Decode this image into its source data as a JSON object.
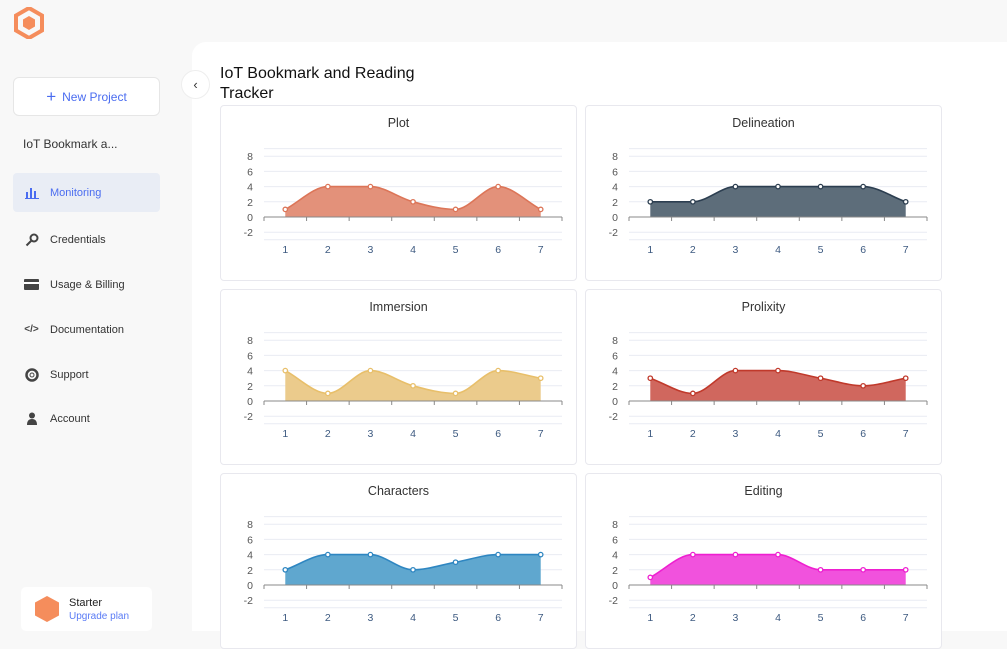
{
  "sidebar": {
    "new_project": "New Project",
    "project_name": "IoT Bookmark a...",
    "items": [
      {
        "label": "Monitoring",
        "icon": "bar-chart-icon",
        "active": true
      },
      {
        "label": "Credentials",
        "icon": "key-icon"
      },
      {
        "label": "Usage & Billing",
        "icon": "credit-card-icon"
      },
      {
        "label": "Documentation",
        "icon": "code-icon"
      },
      {
        "label": "Support",
        "icon": "lifebuoy-icon"
      },
      {
        "label": "Account",
        "icon": "user-icon"
      }
    ],
    "plan": {
      "name": "Starter",
      "upgrade": "Upgrade plan"
    }
  },
  "page": {
    "title": "IoT Bookmark and Reading Tracker"
  },
  "colors": {
    "accent": "#4a6cf0",
    "brand": "#f58d5c"
  },
  "chart_data": [
    {
      "type": "area",
      "title": "Plot",
      "categories": [
        "1",
        "2",
        "3",
        "4",
        "5",
        "6",
        "7"
      ],
      "values": [
        1,
        4,
        4,
        2,
        1,
        4,
        1
      ],
      "yticks": [
        -2,
        0,
        2,
        4,
        6,
        8
      ],
      "line": "#dc7558",
      "fill": "#e3917a"
    },
    {
      "type": "area",
      "title": "Delineation",
      "categories": [
        "1",
        "2",
        "3",
        "4",
        "5",
        "6",
        "7"
      ],
      "values": [
        2,
        2,
        4,
        4,
        4,
        4,
        2
      ],
      "yticks": [
        -2,
        0,
        2,
        4,
        6,
        8
      ],
      "line": "#2c3e50",
      "fill": "#5d6d7a"
    },
    {
      "type": "area",
      "title": "Immersion",
      "categories": [
        "1",
        "2",
        "3",
        "4",
        "5",
        "6",
        "7"
      ],
      "values": [
        4,
        1,
        4,
        2,
        1,
        4,
        3
      ],
      "yticks": [
        -2,
        0,
        2,
        4,
        6,
        8
      ],
      "line": "#e8bf6a",
      "fill": "#ebcb8c"
    },
    {
      "type": "area",
      "title": "Prolixity",
      "categories": [
        "1",
        "2",
        "3",
        "4",
        "5",
        "6",
        "7"
      ],
      "values": [
        3,
        1,
        4,
        4,
        3,
        2,
        3
      ],
      "yticks": [
        -2,
        0,
        2,
        4,
        6,
        8
      ],
      "line": "#c0392b",
      "fill": "#d0675e"
    },
    {
      "type": "area",
      "title": "Characters",
      "categories": [
        "1",
        "2",
        "3",
        "4",
        "5",
        "6",
        "7"
      ],
      "values": [
        2,
        4,
        4,
        2,
        3,
        4,
        4
      ],
      "yticks": [
        -2,
        0,
        2,
        4,
        6,
        8
      ],
      "line": "#2e86c1",
      "fill": "#5fa7cf"
    },
    {
      "type": "area",
      "title": "Editing",
      "categories": [
        "1",
        "2",
        "3",
        "4",
        "5",
        "6",
        "7"
      ],
      "values": [
        1,
        4,
        4,
        4,
        2,
        2,
        2
      ],
      "yticks": [
        -2,
        0,
        2,
        4,
        6,
        8
      ],
      "line": "#ee1fd0",
      "fill": "#f152dd"
    }
  ]
}
